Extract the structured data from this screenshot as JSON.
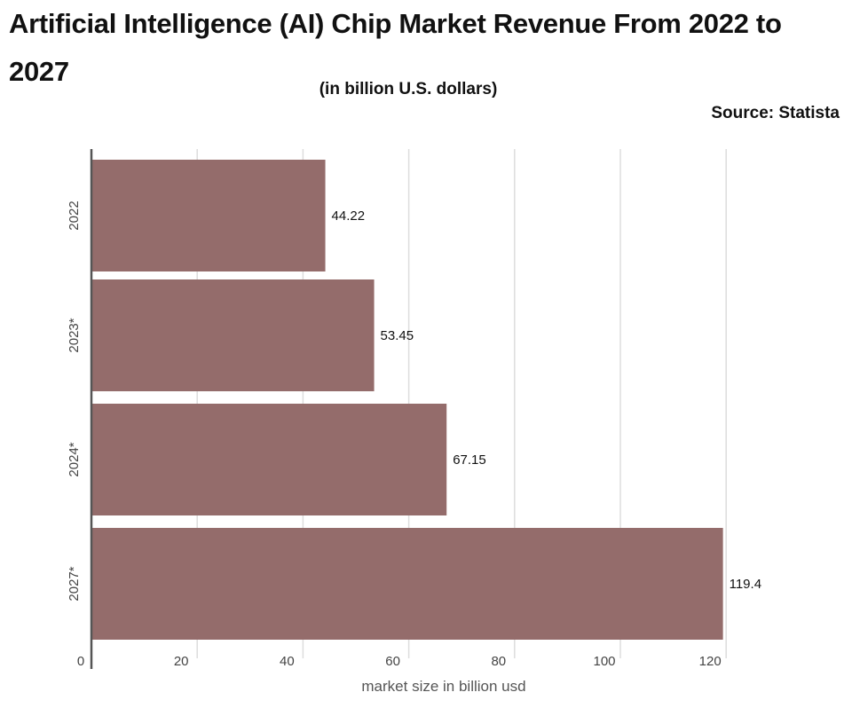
{
  "chart_data": {
    "type": "bar",
    "orientation": "horizontal",
    "title": "Artificial Intelligence (AI) Chip Market Revenue From 2022 to 2027",
    "subtitle": "(in billion U.S. dollars)",
    "source": "Source: Statista",
    "categories": [
      "2022",
      "2023*",
      "2024*",
      "2027*"
    ],
    "values": [
      44.22,
      53.45,
      67.15,
      119.4
    ],
    "value_labels": [
      "44.22",
      "53.45",
      "67.15",
      "119.4"
    ],
    "xlabel": "market size in billion usd",
    "ylabel": "",
    "xlim": [
      0,
      125
    ],
    "xticks": [
      0,
      20,
      40,
      60,
      80,
      100,
      120
    ],
    "grid": "vertical",
    "bar_color": "#946c6b",
    "grid_color": "#dddddd",
    "axis_color": "#555555"
  }
}
